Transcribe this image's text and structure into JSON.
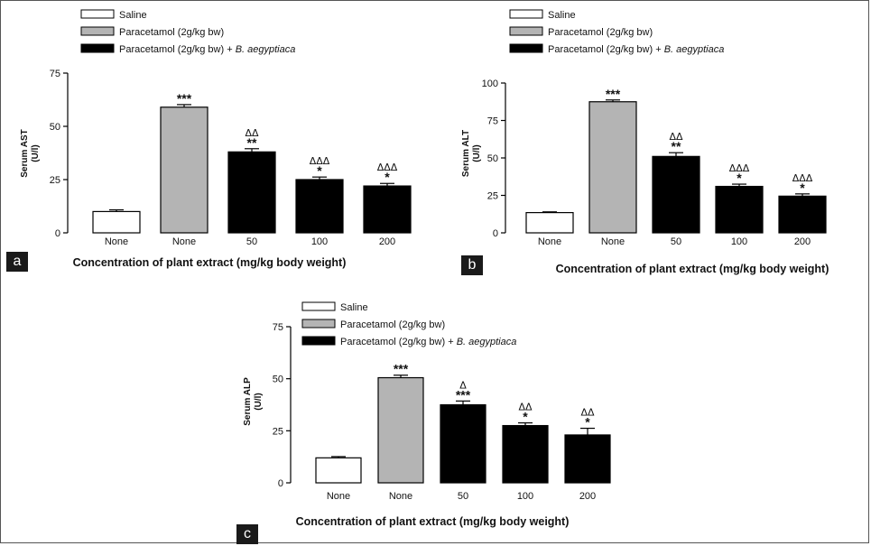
{
  "legend_labels": {
    "saline": "Saline",
    "paracetamol": "Paracetamol (2g/kg bw)",
    "combo_prefix": "Paracetamol (2g/kg bw) + ",
    "combo_species": "B. aegyptiaca"
  },
  "colors": {
    "saline": "#ffffff",
    "paracetamol": "#b4b4b4",
    "combo": "#000000",
    "axis": "#000000"
  },
  "chart_data": [
    {
      "type": "bar",
      "panel_label": "a",
      "ylabel_line1": "Serum AST",
      "ylabel_line2": "(U/l)",
      "xlabel": "Concentration of plant extract (mg/kg body weight)",
      "categories": [
        "None",
        "None",
        "50",
        "100",
        "200"
      ],
      "groups": [
        "saline",
        "paracetamol",
        "combo",
        "combo",
        "combo"
      ],
      "values": [
        10,
        59,
        38,
        25,
        22
      ],
      "errors": [
        0.8,
        1.2,
        1.5,
        1.2,
        1.2
      ],
      "significance": [
        "",
        "***",
        "**",
        "*",
        "*"
      ],
      "delta_marks": [
        "",
        "",
        "ΔΔ",
        "ΔΔΔ",
        "ΔΔΔ"
      ],
      "ylim": [
        0,
        75
      ],
      "yticks": [
        0,
        25,
        50,
        75
      ],
      "legend_position": "top-left"
    },
    {
      "type": "bar",
      "panel_label": "b",
      "ylabel_line1": "Serum ALT",
      "ylabel_line2": "(U/l)",
      "xlabel": "Concentration of plant extract (mg/kg body weight)",
      "categories": [
        "None",
        "None",
        "50",
        "100",
        "200"
      ],
      "groups": [
        "saline",
        "paracetamol",
        "combo",
        "combo",
        "combo"
      ],
      "values": [
        13.5,
        87.5,
        51,
        31,
        24.5
      ],
      "errors": [
        0.5,
        1.2,
        2.5,
        1.5,
        1.5
      ],
      "significance": [
        "",
        "***",
        "**",
        "*",
        "*"
      ],
      "delta_marks": [
        "",
        "",
        "ΔΔ",
        "ΔΔΔ",
        "ΔΔΔ"
      ],
      "ylim": [
        0,
        100
      ],
      "yticks": [
        0,
        25,
        50,
        75,
        100
      ],
      "legend_position": "top-left"
    },
    {
      "type": "bar",
      "panel_label": "c",
      "ylabel_line1": "Serum ALP",
      "ylabel_line2": "(U/l)",
      "xlabel": "Concentration of plant extract (mg/kg body weight)",
      "categories": [
        "None",
        "None",
        "50",
        "100",
        "200"
      ],
      "groups": [
        "saline",
        "paracetamol",
        "combo",
        "combo",
        "combo"
      ],
      "values": [
        12,
        50.5,
        37.5,
        27.5,
        23
      ],
      "errors": [
        0.6,
        1.2,
        1.8,
        1.3,
        3.2
      ],
      "significance": [
        "",
        "***",
        "***",
        "*",
        "*"
      ],
      "delta_marks": [
        "",
        "",
        "Δ",
        "ΔΔ",
        "ΔΔ"
      ],
      "ylim": [
        0,
        75
      ],
      "yticks": [
        0,
        25,
        50,
        75
      ],
      "legend_position": "top-left"
    }
  ]
}
